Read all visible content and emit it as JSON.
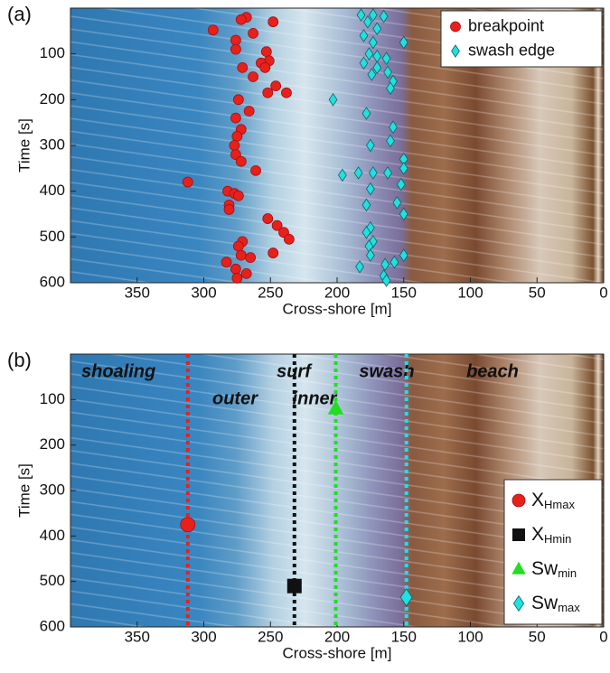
{
  "chart_data": [
    {
      "type": "scatter",
      "panel_label": "(a)",
      "xlabel": "Cross-shore [m]",
      "ylabel": "Time [s]",
      "xlim": [
        400,
        0
      ],
      "ylim": [
        600,
        0
      ],
      "xticks": [
        350,
        300,
        250,
        200,
        150,
        100,
        50,
        0
      ],
      "yticks": [
        100,
        200,
        300,
        400,
        500,
        600
      ],
      "legend": "upper right",
      "series": [
        {
          "name": "breakpoint",
          "color": "#e8201c",
          "marker": "circle",
          "x": [
            268,
            272,
            293,
            248,
            263,
            276,
            276,
            253,
            251,
            257,
            254,
            271,
            263,
            246,
            238,
            252,
            274,
            266,
            276,
            272,
            275,
            277,
            276,
            272,
            261,
            312,
            282,
            277,
            274,
            281,
            281,
            252,
            245,
            240,
            236,
            248,
            271,
            274,
            272,
            265,
            283,
            276,
            268,
            275
          ],
          "values": [
            20,
            25,
            48,
            30,
            55,
            70,
            90,
            95,
            115,
            120,
            130,
            130,
            150,
            170,
            185,
            185,
            200,
            225,
            240,
            265,
            280,
            300,
            320,
            335,
            355,
            380,
            400,
            405,
            410,
            430,
            440,
            460,
            475,
            490,
            505,
            535,
            510,
            520,
            540,
            545,
            555,
            570,
            580,
            590
          ]
        },
        {
          "name": "swash edge",
          "color": "#22e0e0",
          "marker": "diamond",
          "x": [
            182,
            173,
            165,
            177,
            170,
            150,
            180,
            173,
            176,
            170,
            163,
            180,
            170,
            174,
            162,
            158,
            160,
            203,
            178,
            158,
            160,
            175,
            150,
            150,
            173,
            162,
            184,
            196,
            152,
            175,
            155,
            178,
            150,
            175,
            178,
            173,
            176,
            175,
            150,
            157,
            183,
            164,
            165,
            163
          ],
          "values": [
            15,
            15,
            18,
            30,
            45,
            75,
            60,
            75,
            100,
            105,
            110,
            120,
            130,
            145,
            140,
            160,
            175,
            200,
            230,
            260,
            290,
            300,
            330,
            350,
            360,
            360,
            360,
            365,
            385,
            395,
            425,
            430,
            450,
            480,
            490,
            510,
            520,
            540,
            540,
            555,
            565,
            560,
            585,
            595
          ]
        }
      ]
    },
    {
      "type": "scatter",
      "panel_label": "(b)",
      "xlabel": "Cross-shore [m]",
      "ylabel": "Time [s]",
      "xlim": [
        400,
        0
      ],
      "ylim": [
        600,
        0
      ],
      "xticks": [
        350,
        300,
        250,
        200,
        150,
        100,
        50,
        0
      ],
      "yticks": [
        100,
        200,
        300,
        400,
        500,
        600
      ],
      "legend": "lower right",
      "vlines": true,
      "annotations": [
        "shoaling",
        "outer",
        "surf",
        "inner",
        "swash",
        "beach"
      ],
      "series": [
        {
          "name": "X",
          "subscript": "Hmax",
          "color": "#e8201c",
          "marker": "circle",
          "x": [
            312
          ],
          "values": [
            375
          ]
        },
        {
          "name": "X",
          "subscript": "Hmin",
          "color": "#111111",
          "marker": "square",
          "x": [
            232
          ],
          "values": [
            510
          ]
        },
        {
          "name": "Sw",
          "subscript": "min",
          "color": "#22dd22",
          "marker": "triangle",
          "x": [
            201
          ],
          "values": [
            120
          ]
        },
        {
          "name": "Sw",
          "subscript": "max",
          "color": "#22e0e0",
          "marker": "diamond",
          "x": [
            148
          ],
          "values": [
            535
          ]
        }
      ]
    }
  ]
}
